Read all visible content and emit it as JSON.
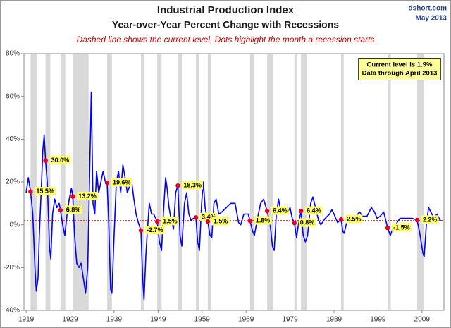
{
  "chart_data": {
    "type": "line",
    "title": "Industrial Production Index",
    "subtitle": "Year-over-Year Percent Change with Recessions",
    "note": "Dashed line shows the current level, Dots highlight the month a recession starts",
    "source": "dshort.com",
    "date": "May 2013",
    "annotation": [
      "Current level is 1.9%",
      "Data through April 2013"
    ],
    "color": "#0000ff",
    "x": [
      1919.0,
      1919.5,
      1920.0,
      1920.5,
      1921.0,
      1921.3,
      1921.7,
      1922.0,
      1922.5,
      1922.8,
      1923.1,
      1923.4,
      1923.8,
      1924.3,
      1924.6,
      1925.0,
      1925.5,
      1926.0,
      1926.5,
      1926.8,
      1927.3,
      1927.8,
      1928.3,
      1928.8,
      1929.3,
      1929.6,
      1930.0,
      1930.5,
      1931.0,
      1931.5,
      1932.0,
      1932.5,
      1933.0,
      1933.5,
      1933.8,
      1934.2,
      1934.6,
      1935.0,
      1935.5,
      1936.0,
      1936.5,
      1937.0,
      1937.4,
      1937.8,
      1938.2,
      1938.5,
      1939.0,
      1939.5,
      1940.0,
      1940.5,
      1941.0,
      1941.5,
      1942.0,
      1942.5,
      1943.0,
      1943.5,
      1944.0,
      1944.5,
      1945.1,
      1945.5,
      1945.8,
      1946.2,
      1946.5,
      1947.0,
      1947.5,
      1948.0,
      1948.8,
      1949.3,
      1949.8,
      1950.2,
      1950.7,
      1951.0,
      1951.5,
      1952.0,
      1952.5,
      1953.0,
      1953.5,
      1954.0,
      1954.4,
      1955.0,
      1955.5,
      1956.0,
      1956.5,
      1957.0,
      1957.6,
      1958.0,
      1958.4,
      1958.9,
      1959.3,
      1959.7,
      1960.3,
      1960.8,
      1961.2,
      1961.7,
      1962.2,
      1962.8,
      1963.5,
      1964.5,
      1965.5,
      1966.5,
      1967.3,
      1967.8,
      1968.5,
      1969.5,
      1969.9,
      1970.5,
      1970.9,
      1971.5,
      1972.3,
      1973.0,
      1973.8,
      1974.5,
      1975.0,
      1975.4,
      1975.9,
      1976.4,
      1977.0,
      1977.5,
      1978.5,
      1979.0,
      1979.5,
      1980.0,
      1980.5,
      1980.9,
      1981.5,
      1982.0,
      1982.5,
      1983.0,
      1983.7,
      1984.2,
      1984.8,
      1985.5,
      1986.0,
      1987.0,
      1988.0,
      1988.5,
      1989.0,
      1989.8,
      1990.6,
      1991.0,
      1991.3,
      1992.0,
      1993.0,
      1994.0,
      1994.8,
      1995.5,
      1996.5,
      1997.5,
      1998.2,
      1998.8,
      1999.5,
      2000.3,
      2001.2,
      2001.8,
      2002.5,
      2003.0,
      2004.0,
      2005.0,
      2006.0,
      2006.8,
      2007.9,
      2008.5,
      2009.2,
      2009.5,
      2010.0,
      2010.5,
      2011.0,
      2011.5,
      2012.0,
      2012.5,
      2013.0,
      2013.3
    ],
    "values": [
      15,
      22,
      15.5,
      5,
      -20,
      -31,
      -25,
      -5,
      20,
      35,
      42,
      30,
      20,
      -10,
      -16,
      5,
      12,
      8,
      10,
      6.8,
      0,
      -5,
      5,
      12,
      17,
      13.2,
      -5,
      -18,
      -20,
      -18,
      -25,
      -32,
      -20,
      30,
      62,
      10,
      5,
      25,
      15,
      20,
      25,
      20,
      19.6,
      0,
      -30,
      -32,
      -5,
      20,
      25,
      15,
      28,
      22,
      15,
      18,
      20,
      12,
      5,
      1,
      -2.7,
      -25,
      -35,
      -15,
      -5,
      10,
      5,
      5,
      1.5,
      -8,
      -12,
      5,
      22,
      18,
      8,
      2,
      -2,
      15,
      18.3,
      -5,
      -10,
      10,
      15,
      5,
      2,
      3,
      3.4,
      -8,
      -12,
      10,
      20,
      8,
      1.5,
      -5,
      -6,
      10,
      12,
      5,
      6,
      8,
      10,
      10,
      1,
      0,
      5,
      5,
      1.8,
      -3,
      -5,
      2,
      10,
      12,
      6.4,
      0,
      -10,
      -12,
      5,
      12,
      5,
      7,
      6,
      8,
      3,
      0.8,
      -6,
      0,
      6.4,
      -5,
      -8,
      -5,
      10,
      13,
      8,
      2,
      0,
      3,
      5,
      7,
      5,
      1,
      2.5,
      -3,
      -4,
      2,
      3,
      4,
      6,
      4,
      4,
      8,
      6,
      3,
      4,
      6,
      -1.5,
      -5,
      -1,
      0,
      3,
      3,
      3,
      3,
      2.2,
      -4,
      -13,
      -15,
      0,
      8,
      6,
      4,
      4,
      5,
      2.5,
      1.9
    ],
    "xlim": [
      1918.5,
      2014
    ],
    "xticks": [
      1919,
      1929,
      1939,
      1949,
      1959,
      1969,
      1979,
      1989,
      1999,
      2009
    ],
    "ylim": [
      -40,
      80
    ],
    "yticks": [
      {
        "value": -40,
        "label": "-40%"
      },
      {
        "value": -20,
        "label": "-20%"
      },
      {
        "value": 0,
        "label": "0%"
      },
      {
        "value": 20,
        "label": "20%"
      },
      {
        "value": 40,
        "label": "40%"
      },
      {
        "value": 60,
        "label": "60%"
      },
      {
        "value": 80,
        "label": "80%"
      }
    ],
    "recession_color": "#d9d9d9",
    "recessions": [
      [
        1920.0,
        1921.5
      ],
      [
        1923.4,
        1924.5
      ],
      [
        1926.8,
        1927.9
      ],
      [
        1929.6,
        1933.2
      ],
      [
        1937.4,
        1938.5
      ],
      [
        1945.1,
        1945.8
      ],
      [
        1948.8,
        1949.8
      ],
      [
        1953.5,
        1954.4
      ],
      [
        1957.6,
        1958.3
      ],
      [
        1960.3,
        1961.1
      ],
      [
        1969.9,
        1970.9
      ],
      [
        1973.8,
        1975.2
      ],
      [
        1980.0,
        1980.5
      ],
      [
        1981.5,
        1982.9
      ],
      [
        1990.6,
        1991.2
      ],
      [
        2001.2,
        2001.9
      ],
      [
        2007.9,
        2009.5
      ]
    ],
    "recession_starts": {
      "color": "#e8001c",
      "x": [
        1920.0,
        1923.4,
        1926.8,
        1929.6,
        1937.4,
        1945.1,
        1948.8,
        1953.5,
        1957.6,
        1960.3,
        1969.9,
        1973.8,
        1980.0,
        1981.5,
        1990.6,
        2001.2,
        2007.9
      ],
      "values": [
        15.5,
        30.0,
        6.8,
        13.2,
        19.6,
        -2.7,
        1.5,
        18.3,
        3.4,
        1.5,
        1.8,
        6.4,
        0.8,
        6.4,
        2.5,
        -1.5,
        2.2
      ],
      "value_labels": [
        "15.5%",
        "30.0%",
        "6.8%",
        "13.2%",
        "19.6%",
        "-2.7%",
        "1.5%",
        "18.3%",
        "3.4%",
        "1.5%",
        "1.8%",
        "6.4%",
        "0.8%",
        "6.4%",
        "2.5%",
        "-1.5%",
        "2.2%"
      ]
    },
    "current_level": 1.9,
    "current_level_color": "#cc0000"
  }
}
